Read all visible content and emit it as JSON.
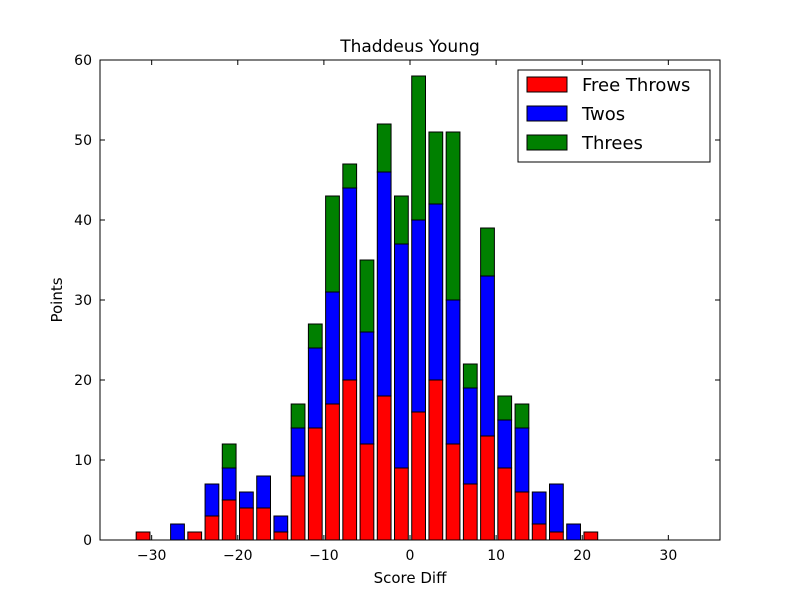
{
  "chart_data": {
    "type": "bar",
    "stacked": true,
    "title": "Thaddeus Young",
    "xlabel": "Score Diff",
    "ylabel": "Points",
    "xlim": [
      -36,
      36
    ],
    "ylim": [
      0,
      60
    ],
    "xticks": [
      -30,
      -20,
      -10,
      0,
      10,
      20,
      30
    ],
    "yticks": [
      0,
      10,
      20,
      30,
      40,
      50,
      60
    ],
    "x_tick_labels": [
      "−30",
      "−20",
      "−10",
      "0",
      "10",
      "20",
      "30"
    ],
    "y_tick_labels": [
      "0",
      "10",
      "20",
      "30",
      "40",
      "50",
      "60"
    ],
    "grid": false,
    "legend_position": "top-right",
    "x": [
      -31,
      -27,
      -25,
      -23,
      -21,
      -19,
      -17,
      -15,
      -13,
      -11,
      -9,
      -7,
      -5,
      -3,
      -1,
      1,
      3,
      5,
      7,
      9,
      11,
      13,
      15,
      17,
      19,
      21
    ],
    "series": [
      {
        "name": "Free Throws",
        "color": "#ff0000",
        "values": [
          1,
          0,
          1,
          3,
          5,
          4,
          4,
          1,
          8,
          14,
          17,
          20,
          12,
          18,
          9,
          16,
          20,
          12,
          7,
          13,
          9,
          6,
          2,
          1,
          0,
          1
        ]
      },
      {
        "name": "Twos",
        "color": "#0000ff",
        "values": [
          0,
          2,
          0,
          4,
          4,
          2,
          4,
          2,
          6,
          10,
          14,
          24,
          14,
          28,
          28,
          24,
          22,
          18,
          12,
          20,
          6,
          8,
          4,
          6,
          2,
          0
        ]
      },
      {
        "name": "Threes",
        "color": "#008000",
        "values": [
          0,
          0,
          0,
          0,
          3,
          0,
          0,
          0,
          3,
          3,
          12,
          3,
          9,
          6,
          6,
          18,
          9,
          21,
          3,
          6,
          3,
          3,
          0,
          0,
          0,
          0
        ]
      }
    ]
  }
}
